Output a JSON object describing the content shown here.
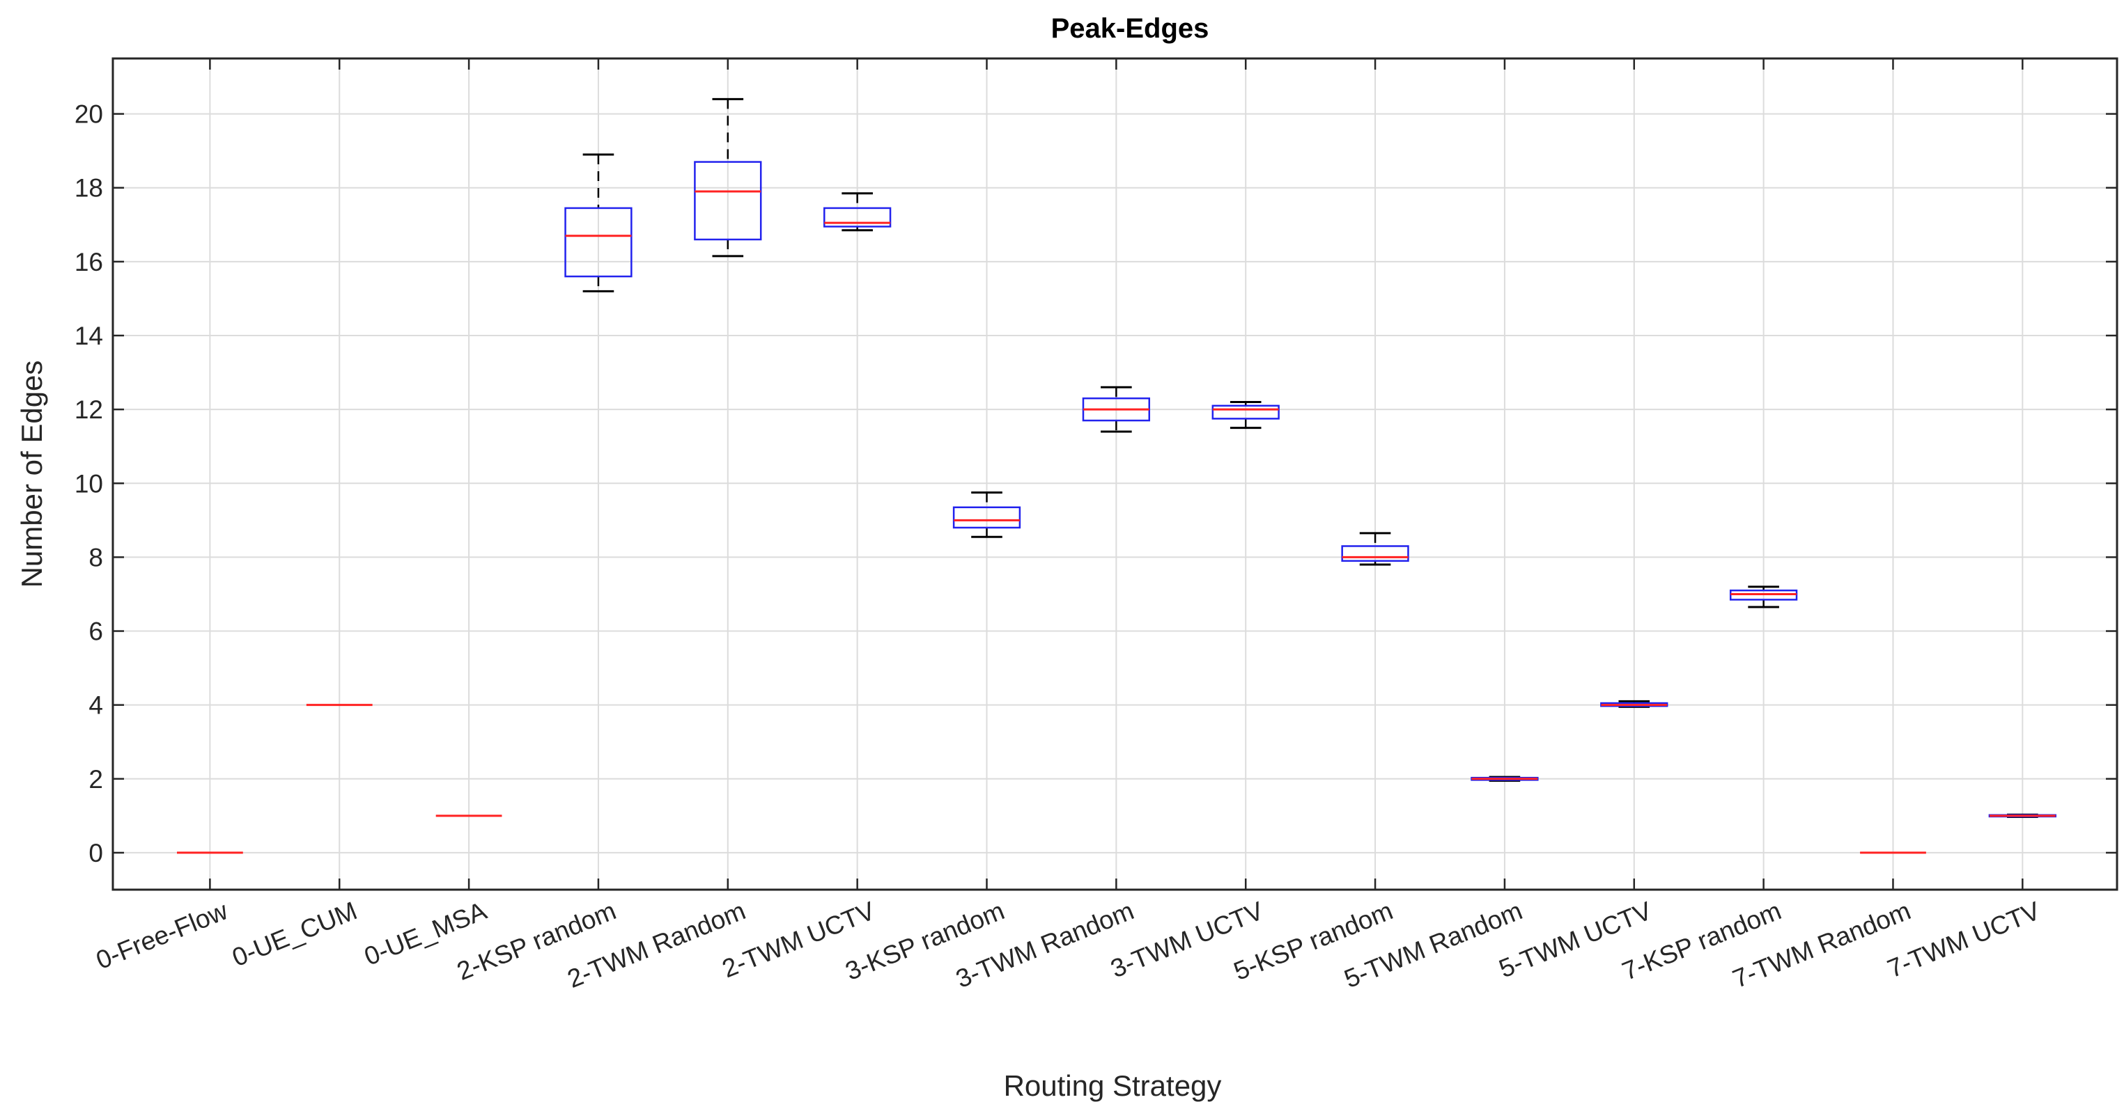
{
  "chart_data": {
    "type": "boxplot",
    "title": "Peak-Edges",
    "xlabel": "Routing Strategy",
    "ylabel": "Number of Edges",
    "ylim": [
      -1,
      21.5
    ],
    "yticks": [
      0,
      2,
      4,
      6,
      8,
      10,
      12,
      14,
      16,
      18,
      20
    ],
    "grid": true,
    "colors": {
      "box": "#2222ee",
      "median": "#ff2222",
      "whisker": "#000000",
      "grid": "#dcdcdc"
    },
    "categories": [
      "0-Free-Flow",
      "0-UE_CUM",
      "0-UE_MSA",
      "2-KSP random",
      "2-TWM Random",
      "2-TWM UCTV",
      "3-KSP random",
      "3-TWM Random",
      "3-TWM UCTV",
      "5-KSP random",
      "5-TWM Random",
      "5-TWM UCTV",
      "7-KSP random",
      "7-TWM Random",
      "7-TWM UCTV"
    ],
    "boxes": [
      {
        "min": 0,
        "q1": 0,
        "median": 0,
        "q3": 0,
        "max": 0
      },
      {
        "min": 4,
        "q1": 4,
        "median": 4,
        "q3": 4,
        "max": 4
      },
      {
        "min": 1,
        "q1": 1,
        "median": 1,
        "q3": 1,
        "max": 1
      },
      {
        "min": 15.2,
        "q1": 15.6,
        "median": 16.7,
        "q3": 17.45,
        "max": 18.9
      },
      {
        "min": 16.15,
        "q1": 16.6,
        "median": 17.9,
        "q3": 18.7,
        "max": 20.4
      },
      {
        "min": 16.85,
        "q1": 16.95,
        "median": 17.05,
        "q3": 17.45,
        "max": 17.85
      },
      {
        "min": 8.55,
        "q1": 8.8,
        "median": 9.0,
        "q3": 9.35,
        "max": 9.75
      },
      {
        "min": 11.4,
        "q1": 11.7,
        "median": 12.0,
        "q3": 12.3,
        "max": 12.6
      },
      {
        "min": 11.5,
        "q1": 11.75,
        "median": 12.0,
        "q3": 12.1,
        "max": 12.2
      },
      {
        "min": 7.8,
        "q1": 7.9,
        "median": 8.0,
        "q3": 8.3,
        "max": 8.65
      },
      {
        "min": 1.95,
        "q1": 1.97,
        "median": 2.0,
        "q3": 2.03,
        "max": 2.05
      },
      {
        "min": 3.95,
        "q1": 3.97,
        "median": 4.0,
        "q3": 4.05,
        "max": 4.1
      },
      {
        "min": 6.65,
        "q1": 6.85,
        "median": 7.0,
        "q3": 7.1,
        "max": 7.2
      },
      {
        "min": 0,
        "q1": 0,
        "median": 0,
        "q3": 0,
        "max": 0
      },
      {
        "min": 0.97,
        "q1": 0.98,
        "median": 1.0,
        "q3": 1.02,
        "max": 1.03
      }
    ]
  }
}
